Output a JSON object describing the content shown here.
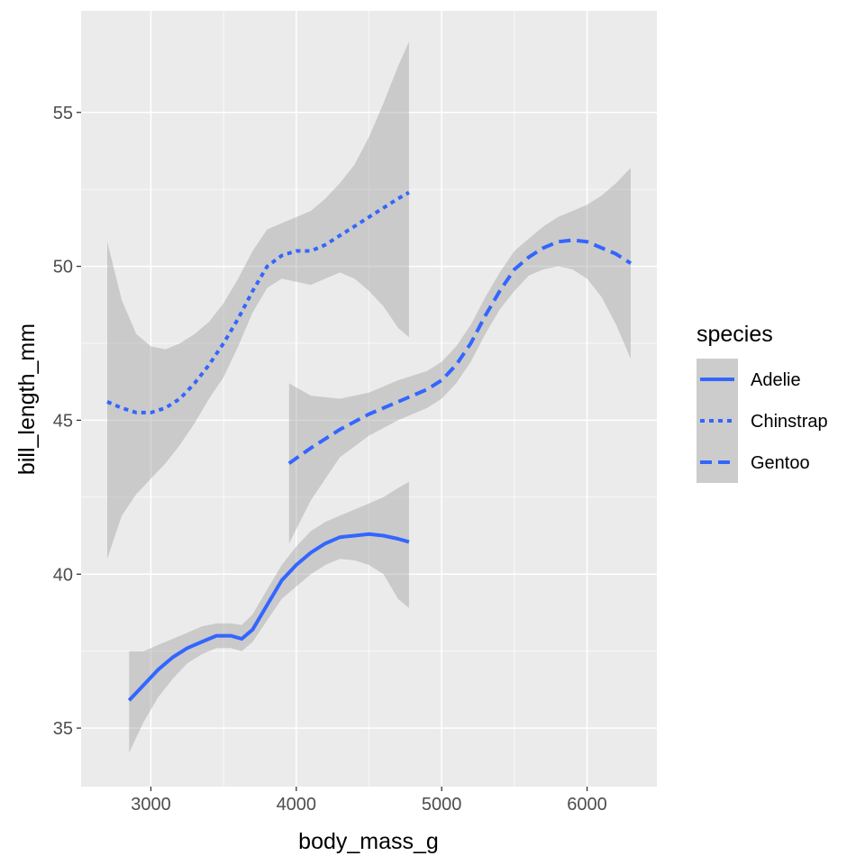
{
  "chart_data": {
    "type": "line",
    "title": "",
    "xlabel": "body_mass_g",
    "ylabel": "bill_length_mm",
    "xlim": [
      2520,
      6480
    ],
    "ylim": [
      33.1,
      58.3
    ],
    "x_ticks": [
      3000,
      4000,
      5000,
      6000
    ],
    "y_ticks": [
      35,
      40,
      45,
      50,
      55
    ],
    "grid": true,
    "legend": {
      "title": "species",
      "position": "right"
    },
    "line_color": "#3366FF",
    "ribbon_color": "#999999",
    "panel_background": "#EBEBEB",
    "series": [
      {
        "name": "Adelie",
        "linetype": "solid",
        "x": [
          2850,
          2950,
          3050,
          3150,
          3250,
          3350,
          3450,
          3550,
          3625,
          3700,
          3800,
          3900,
          4000,
          4100,
          4200,
          4300,
          4400,
          4500,
          4600,
          4700,
          4775
        ],
        "y": [
          35.9,
          36.4,
          36.9,
          37.3,
          37.6,
          37.8,
          38.0,
          38.0,
          37.9,
          38.2,
          39.0,
          39.8,
          40.3,
          40.7,
          41.0,
          41.2,
          41.25,
          41.3,
          41.25,
          41.15,
          41.05
        ],
        "lower": [
          34.2,
          35.2,
          36.0,
          36.6,
          37.1,
          37.4,
          37.6,
          37.6,
          37.5,
          37.8,
          38.5,
          39.2,
          39.6,
          40.0,
          40.3,
          40.5,
          40.45,
          40.3,
          40.0,
          39.2,
          38.9
        ],
        "upper": [
          37.5,
          37.5,
          37.7,
          37.9,
          38.1,
          38.3,
          38.4,
          38.4,
          38.35,
          38.7,
          39.5,
          40.3,
          40.9,
          41.4,
          41.7,
          41.9,
          42.1,
          42.3,
          42.5,
          42.8,
          43.0
        ]
      },
      {
        "name": "Chinstrap",
        "linetype": "dotted",
        "x": [
          2700,
          2800,
          2900,
          3000,
          3100,
          3200,
          3300,
          3400,
          3500,
          3600,
          3700,
          3800,
          3900,
          4000,
          4100,
          4200,
          4300,
          4400,
          4500,
          4600,
          4700,
          4775
        ],
        "y": [
          45.6,
          45.4,
          45.25,
          45.25,
          45.4,
          45.7,
          46.2,
          46.8,
          47.5,
          48.3,
          49.2,
          50.0,
          50.35,
          50.5,
          50.5,
          50.7,
          51.0,
          51.3,
          51.6,
          51.9,
          52.2,
          52.4
        ],
        "lower": [
          40.5,
          41.9,
          42.6,
          43.1,
          43.6,
          44.2,
          44.9,
          45.7,
          46.4,
          47.4,
          48.5,
          49.3,
          49.6,
          49.5,
          49.4,
          49.6,
          49.8,
          49.6,
          49.2,
          48.7,
          48.0,
          47.7
        ],
        "upper": [
          50.8,
          48.9,
          47.8,
          47.4,
          47.3,
          47.5,
          47.8,
          48.2,
          48.8,
          49.6,
          50.5,
          51.2,
          51.4,
          51.6,
          51.8,
          52.2,
          52.7,
          53.3,
          54.2,
          55.3,
          56.5,
          57.3
        ]
      },
      {
        "name": "Gentoo",
        "linetype": "dashed",
        "x": [
          3950,
          4100,
          4300,
          4500,
          4700,
          4900,
          5000,
          5100,
          5200,
          5300,
          5400,
          5500,
          5600,
          5700,
          5800,
          5900,
          6000,
          6100,
          6200,
          6300
        ],
        "y": [
          43.6,
          44.1,
          44.7,
          45.2,
          45.6,
          46.0,
          46.3,
          46.8,
          47.5,
          48.4,
          49.2,
          49.9,
          50.3,
          50.6,
          50.8,
          50.85,
          50.8,
          50.6,
          50.4,
          50.1
        ],
        "lower": [
          41.0,
          42.4,
          43.8,
          44.5,
          45.0,
          45.4,
          45.7,
          46.2,
          46.9,
          47.8,
          48.6,
          49.2,
          49.7,
          49.9,
          50.0,
          49.9,
          49.6,
          49.0,
          48.1,
          47.0
        ],
        "upper": [
          46.2,
          45.8,
          45.7,
          45.9,
          46.3,
          46.6,
          46.9,
          47.4,
          48.1,
          49.0,
          49.8,
          50.5,
          50.9,
          51.3,
          51.6,
          51.8,
          52.0,
          52.3,
          52.7,
          53.2
        ]
      }
    ]
  }
}
